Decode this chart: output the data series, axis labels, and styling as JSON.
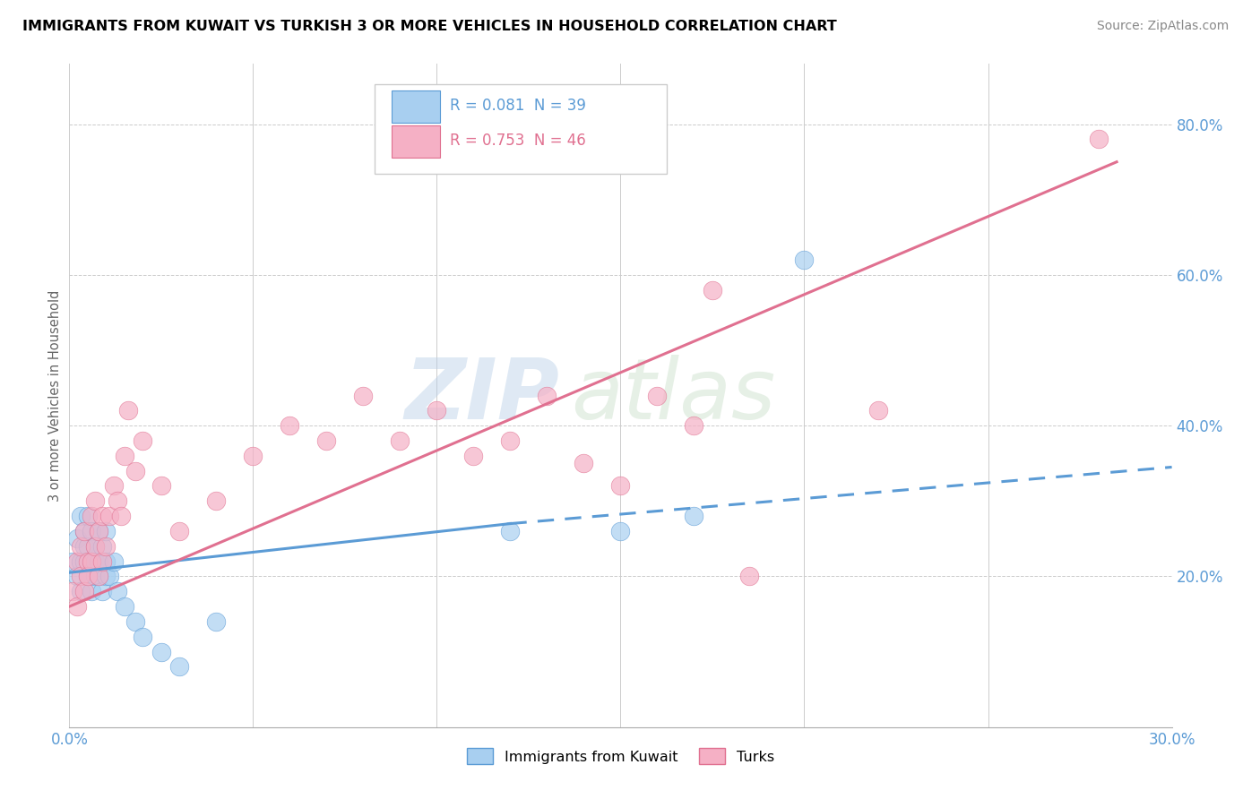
{
  "title": "IMMIGRANTS FROM KUWAIT VS TURKISH 3 OR MORE VEHICLES IN HOUSEHOLD CORRELATION CHART",
  "source": "Source: ZipAtlas.com",
  "ylabel": "3 or more Vehicles in Household",
  "xlim": [
    0.0,
    0.3
  ],
  "ylim": [
    0.0,
    0.88
  ],
  "x_ticks": [
    0.0,
    0.05,
    0.1,
    0.15,
    0.2,
    0.25,
    0.3
  ],
  "y_ticks_right": [
    0.2,
    0.4,
    0.6,
    0.8
  ],
  "y_tick_labels_right": [
    "20.0%",
    "40.0%",
    "60.0%",
    "80.0%"
  ],
  "color_blue": "#a8cff0",
  "color_pink": "#f5b0c5",
  "color_blue_dark": "#5b9bd5",
  "color_pink_dark": "#e07090",
  "color_blue_text": "#5b9bd5",
  "color_pink_text": "#e07090",
  "watermark_zip": "ZIP",
  "watermark_atlas": "atlas",
  "scatter_blue_x": [
    0.001,
    0.002,
    0.002,
    0.003,
    0.003,
    0.003,
    0.004,
    0.004,
    0.004,
    0.005,
    0.005,
    0.005,
    0.006,
    0.006,
    0.006,
    0.007,
    0.007,
    0.007,
    0.008,
    0.008,
    0.008,
    0.009,
    0.009,
    0.01,
    0.01,
    0.01,
    0.011,
    0.012,
    0.013,
    0.015,
    0.018,
    0.02,
    0.025,
    0.03,
    0.04,
    0.12,
    0.15,
    0.17,
    0.2
  ],
  "scatter_blue_y": [
    0.22,
    0.25,
    0.2,
    0.28,
    0.22,
    0.18,
    0.26,
    0.22,
    0.24,
    0.2,
    0.24,
    0.28,
    0.22,
    0.26,
    0.18,
    0.24,
    0.2,
    0.22,
    0.26,
    0.22,
    0.2,
    0.24,
    0.18,
    0.22,
    0.26,
    0.2,
    0.2,
    0.22,
    0.18,
    0.16,
    0.14,
    0.12,
    0.1,
    0.08,
    0.14,
    0.26,
    0.26,
    0.28,
    0.62
  ],
  "scatter_pink_x": [
    0.001,
    0.002,
    0.002,
    0.003,
    0.003,
    0.004,
    0.004,
    0.005,
    0.005,
    0.006,
    0.006,
    0.007,
    0.007,
    0.008,
    0.008,
    0.009,
    0.009,
    0.01,
    0.011,
    0.012,
    0.013,
    0.014,
    0.015,
    0.016,
    0.018,
    0.02,
    0.025,
    0.03,
    0.04,
    0.05,
    0.06,
    0.07,
    0.08,
    0.09,
    0.1,
    0.11,
    0.12,
    0.13,
    0.14,
    0.15,
    0.16,
    0.17,
    0.175,
    0.185,
    0.22,
    0.28
  ],
  "scatter_pink_y": [
    0.18,
    0.22,
    0.16,
    0.24,
    0.2,
    0.26,
    0.18,
    0.22,
    0.2,
    0.28,
    0.22,
    0.3,
    0.24,
    0.26,
    0.2,
    0.28,
    0.22,
    0.24,
    0.28,
    0.32,
    0.3,
    0.28,
    0.36,
    0.42,
    0.34,
    0.38,
    0.32,
    0.26,
    0.3,
    0.36,
    0.4,
    0.38,
    0.44,
    0.38,
    0.42,
    0.36,
    0.38,
    0.44,
    0.35,
    0.32,
    0.44,
    0.4,
    0.58,
    0.2,
    0.42,
    0.78
  ],
  "blue_line_solid_x0": 0.0,
  "blue_line_solid_x1": 0.12,
  "blue_line_solid_y0": 0.205,
  "blue_line_solid_y1": 0.27,
  "blue_line_dash_x0": 0.12,
  "blue_line_dash_x1": 0.3,
  "blue_line_dash_y0": 0.27,
  "blue_line_dash_y1": 0.345,
  "pink_line_x0": 0.0,
  "pink_line_x1": 0.285,
  "pink_line_y0": 0.16,
  "pink_line_y1": 0.75
}
